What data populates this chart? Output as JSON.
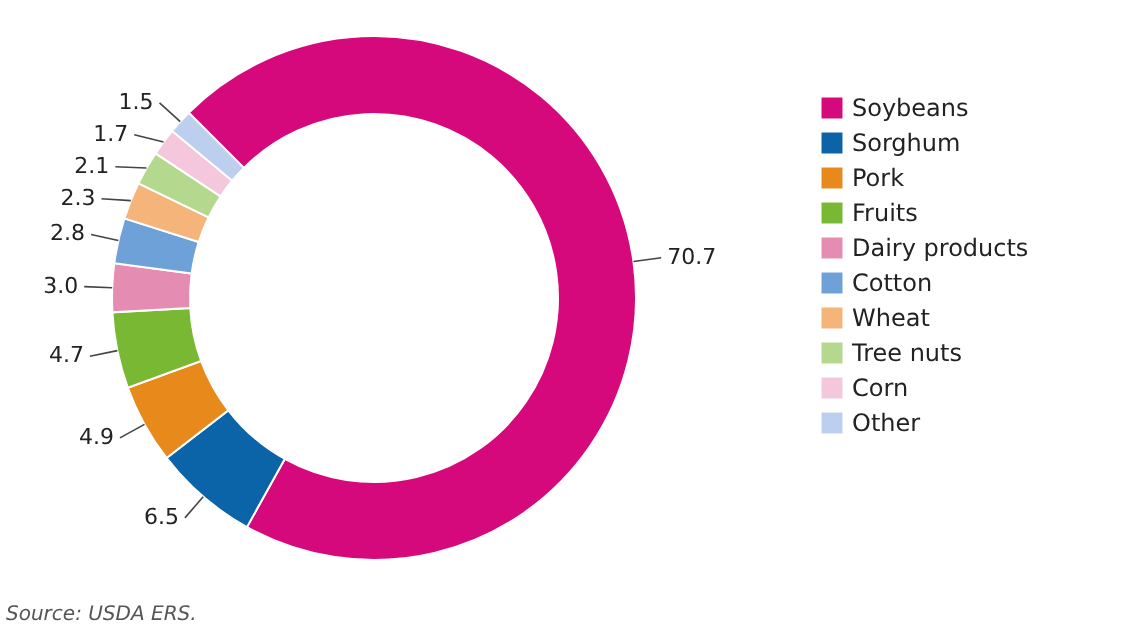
{
  "chart_data": {
    "type": "donut",
    "categories": [
      "Soybeans",
      "Sorghum",
      "Pork",
      "Fruits",
      "Dairy products",
      "Cotton",
      "Wheat",
      "Tree nuts",
      "Corn",
      "Other"
    ],
    "values": [
      70.7,
      6.5,
      4.9,
      4.7,
      3.0,
      2.8,
      2.3,
      2.1,
      1.7,
      1.5
    ],
    "value_labels": [
      "70.7",
      "6.5",
      "4.9",
      "4.7",
      "3.0",
      "2.8",
      "2.3",
      "2.1",
      "1.7",
      "1.5"
    ],
    "colors": [
      "#d5087c",
      "#0b63a8",
      "#e8891b",
      "#79b833",
      "#e58cb3",
      "#6fa1d9",
      "#f4b47a",
      "#b4d88e",
      "#f5c7dc",
      "#bccfee"
    ],
    "legend": "right",
    "annotations": [
      "Source: USDA ERS."
    ]
  }
}
